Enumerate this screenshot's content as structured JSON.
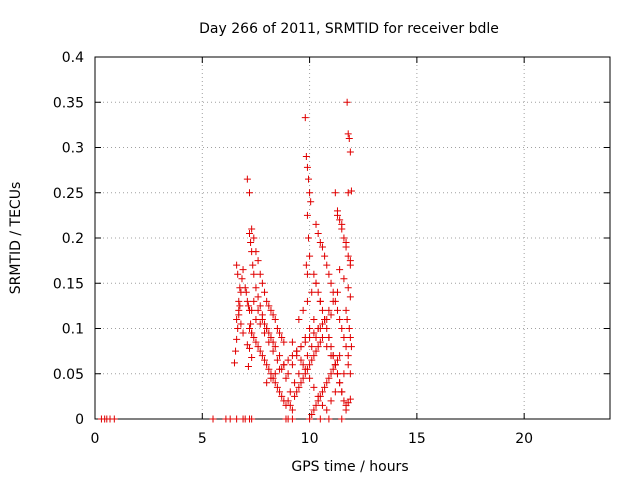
{
  "chart_data": {
    "type": "scatter",
    "title": "Day 266 of 2011, SRMTID for receiver bdle",
    "xlabel": "GPS time / hours",
    "ylabel": "SRMTID / TECUs",
    "xlim": [
      0,
      24
    ],
    "ylim": [
      0,
      0.4
    ],
    "xticks": [
      0,
      5,
      10,
      15,
      20
    ],
    "xtick_labels": [
      "0",
      "5",
      "10",
      "15",
      "20"
    ],
    "yticks": [
      0,
      0.05,
      0.1,
      0.15,
      0.2,
      0.25,
      0.3,
      0.35,
      0.4
    ],
    "ytick_labels": [
      "0",
      "0.05",
      "0.1",
      "0.15",
      "0.2",
      "0.25",
      "0.3",
      "0.35",
      "0.4"
    ],
    "grid": true,
    "marker": "+",
    "color": "#e00000",
    "series": [
      {
        "name": "SRMTID",
        "x": [
          0.3,
          0.45,
          0.55,
          0.7,
          0.9,
          5.5,
          6.1,
          6.3,
          6.6,
          6.9,
          7.0,
          7.2,
          7.3,
          8.9,
          9.0,
          9.2,
          10.5,
          10.9,
          11.5,
          6.5,
          6.55,
          6.6,
          6.65,
          6.7,
          6.75,
          6.8,
          6.85,
          6.9,
          6.6,
          6.7,
          6.8,
          6.9,
          6.65,
          6.75,
          6.6,
          6.7,
          7.1,
          7.2,
          7.3,
          7.4,
          7.5,
          7.6,
          7.7,
          7.8,
          7.9,
          8.0,
          8.1,
          8.2,
          8.3,
          8.4,
          8.5,
          8.6,
          8.7,
          8.8,
          7.2,
          7.3,
          7.4,
          7.5,
          7.6,
          7.7,
          7.8,
          7.9,
          8.0,
          8.1,
          8.2,
          8.3,
          8.4,
          8.5,
          8.6,
          8.7,
          8.8,
          8.9,
          7.3,
          7.5,
          7.7,
          7.9,
          8.1,
          8.3,
          8.5,
          8.7,
          8.9,
          7.4,
          7.6,
          7.8,
          8.0,
          8.2,
          8.4,
          8.6,
          8.8,
          7.2,
          7.25,
          7.3,
          7.35,
          7.4,
          7.5,
          7.6,
          7.7,
          7.8,
          7.9,
          8.0,
          8.1,
          8.2,
          8.3,
          9.0,
          9.1,
          9.2,
          9.3,
          9.4,
          9.5,
          9.6,
          9.7,
          9.8,
          9.9,
          10.0,
          10.1,
          10.2,
          10.3,
          10.4,
          10.5,
          9.0,
          9.2,
          9.4,
          9.6,
          9.8,
          10.0,
          10.2,
          10.4,
          10.6,
          10.8,
          11.0,
          11.2,
          9.1,
          9.3,
          9.5,
          9.7,
          9.9,
          10.1,
          10.3,
          10.5,
          10.7,
          10.9,
          11.1,
          11.3,
          9.2,
          9.4,
          9.6,
          9.8,
          10.0,
          10.2,
          10.4,
          10.6,
          10.8,
          11.0,
          11.2,
          11.4,
          11.6,
          9.5,
          9.7,
          9.9,
          10.1,
          10.3,
          10.5,
          10.7,
          10.9,
          11.1,
          11.3,
          11.5,
          11.7,
          9.8,
          9.85,
          9.9,
          9.95,
          10.0,
          10.05,
          9.9,
          9.95,
          10.0,
          9.85,
          9.9,
          10.3,
          10.4,
          10.5,
          10.2,
          10.3,
          10.4,
          10.5,
          10.6,
          10.7,
          10.8,
          10.9,
          11.0,
          11.1,
          11.2,
          11.3,
          11.4,
          11.5,
          11.6,
          11.7,
          11.8,
          11.9,
          10.6,
          10.7,
          10.8,
          10.9,
          11.0,
          11.1,
          11.2,
          11.3,
          11.4,
          11.5,
          11.6,
          11.7,
          11.8,
          11.2,
          11.3,
          11.4,
          11.5,
          11.6,
          11.7,
          11.8,
          11.9,
          11.3,
          11.5,
          11.7,
          11.9,
          11.4,
          11.6,
          11.8,
          11.75,
          11.8,
          11.85,
          11.9,
          11.95,
          11.8,
          11.9,
          11.7,
          11.75,
          11.85,
          11.9,
          11.95,
          11.8,
          11.9,
          10.0,
          10.1,
          10.2,
          10.3,
          10.4,
          10.5,
          10.6,
          10.7,
          10.8,
          10.9,
          11.0,
          11.1,
          11.2,
          11.3,
          11.4,
          8.0,
          8.2,
          8.4,
          8.6,
          8.8,
          9.0,
          9.2,
          9.4,
          9.6,
          9.8,
          10.0,
          10.2,
          10.4,
          10.6,
          10.8,
          11.0,
          7.0,
          7.05,
          7.1,
          7.15,
          7.2,
          7.25,
          7.3,
          7.1,
          7.2,
          7.3,
          7.15
        ],
        "y": [
          0,
          0,
          0,
          0,
          0,
          0,
          0,
          0,
          0,
          0,
          0,
          0,
          0,
          0,
          0,
          0,
          0,
          0,
          0,
          0.062,
          0.075,
          0.088,
          0.1,
          0.115,
          0.125,
          0.14,
          0.155,
          0.165,
          0.17,
          0.13,
          0.105,
          0.095,
          0.16,
          0.145,
          0.11,
          0.12,
          0.265,
          0.25,
          0.21,
          0.2,
          0.185,
          0.175,
          0.16,
          0.15,
          0.14,
          0.13,
          0.125,
          0.12,
          0.115,
          0.11,
          0.1,
          0.095,
          0.09,
          0.085,
          0.1,
          0.095,
          0.09,
          0.085,
          0.08,
          0.075,
          0.07,
          0.065,
          0.06,
          0.055,
          0.05,
          0.045,
          0.04,
          0.035,
          0.03,
          0.025,
          0.02,
          0.015,
          0.12,
          0.11,
          0.105,
          0.095,
          0.085,
          0.075,
          0.065,
          0.055,
          0.045,
          0.13,
          0.12,
          0.11,
          0.1,
          0.09,
          0.08,
          0.07,
          0.06,
          0.205,
          0.195,
          0.185,
          0.17,
          0.16,
          0.145,
          0.135,
          0.125,
          0.115,
          0.105,
          0.1,
          0.095,
          0.09,
          0.085,
          0.02,
          0.015,
          0.01,
          0.025,
          0.03,
          0.035,
          0.04,
          0.045,
          0.05,
          0.055,
          0.06,
          0.065,
          0.07,
          0.075,
          0.08,
          0.085,
          0.05,
          0.06,
          0.07,
          0.08,
          0.09,
          0.1,
          0.11,
          0.1,
          0.09,
          0.08,
          0.07,
          0.06,
          0.03,
          0.04,
          0.05,
          0.06,
          0.07,
          0.08,
          0.09,
          0.1,
          0.11,
          0.12,
          0.13,
          0.14,
          0.085,
          0.075,
          0.065,
          0.055,
          0.045,
          0.035,
          0.025,
          0.015,
          0.01,
          0.02,
          0.03,
          0.04,
          0.05,
          0.11,
          0.12,
          0.13,
          0.14,
          0.15,
          0.13,
          0.11,
          0.09,
          0.07,
          0.05,
          0.03,
          0.01,
          0.333,
          0.29,
          0.278,
          0.265,
          0.25,
          0.24,
          0.225,
          0.2,
          0.18,
          0.17,
          0.16,
          0.215,
          0.205,
          0.195,
          0.16,
          0.15,
          0.14,
          0.13,
          0.12,
          0.11,
          0.1,
          0.09,
          0.08,
          0.07,
          0.06,
          0.05,
          0.04,
          0.03,
          0.02,
          0.015,
          0.018,
          0.022,
          0.19,
          0.18,
          0.17,
          0.16,
          0.15,
          0.14,
          0.13,
          0.12,
          0.11,
          0.1,
          0.09,
          0.08,
          0.07,
          0.25,
          0.23,
          0.22,
          0.21,
          0.2,
          0.19,
          0.18,
          0.17,
          0.225,
          0.215,
          0.195,
          0.175,
          0.165,
          0.155,
          0.145,
          0.35,
          0.315,
          0.31,
          0.295,
          0.252,
          0.25,
          0.135,
          0.12,
          0.11,
          0.1,
          0.09,
          0.08,
          0.06,
          0.05,
          0.0,
          0.005,
          0.01,
          0.015,
          0.02,
          0.025,
          0.03,
          0.035,
          0.04,
          0.045,
          0.05,
          0.055,
          0.06,
          0.065,
          0.07,
          0.04,
          0.045,
          0.05,
          0.055,
          0.06,
          0.065,
          0.07,
          0.075,
          0.08,
          0.085,
          0.09,
          0.095,
          0.1,
          0.105,
          0.11,
          0.115,
          0.145,
          0.14,
          0.13,
          0.125,
          0.12,
          0.105,
          0.095,
          0.082,
          0.078,
          0.068,
          0.058
        ]
      }
    ]
  }
}
